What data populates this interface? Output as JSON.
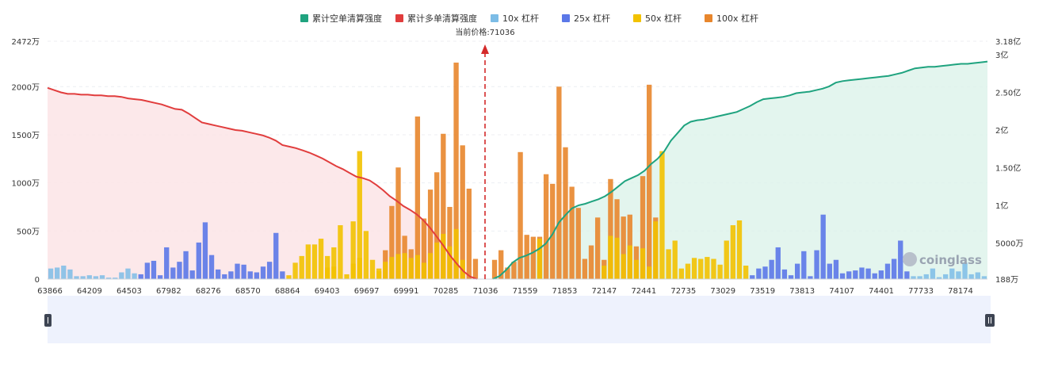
{
  "legend": [
    {
      "label": "累计空单清算强度",
      "color": "#1fa37f",
      "kind": "short"
    },
    {
      "label": "累计多单清算强度",
      "color": "#e13d3d",
      "kind": "long"
    },
    {
      "label": "10x 杠杆",
      "color": "#7cbce6",
      "kind": "10x"
    },
    {
      "label": "25x 杠杆",
      "color": "#5b78e8",
      "kind": "25x"
    },
    {
      "label": "50x 杠杆",
      "color": "#f2c200",
      "kind": "50x"
    },
    {
      "label": "100x 杠杆",
      "color": "#e8862c",
      "kind": "100x"
    }
  ],
  "current_price_label": "当前价格:71036",
  "watermark": "coinglass",
  "chart_data": {
    "type": "bar",
    "current_price": 71036,
    "x_tick_labels": [
      "63866",
      "64209",
      "64503",
      "67982",
      "68276",
      "68570",
      "68864",
      "69403",
      "69697",
      "69991",
      "70285",
      "71036",
      "71559",
      "71853",
      "72147",
      "72441",
      "72735",
      "73029",
      "73519",
      "73813",
      "74107",
      "74401",
      "77733",
      "78174"
    ],
    "left_axis": {
      "ticks": [
        "0",
        "500万",
        "1000万",
        "1500万",
        "2000万",
        "2472万"
      ],
      "ylim": [
        0,
        2472
      ],
      "unit": "万"
    },
    "right_axis": {
      "ticks": [
        "188万",
        "5000万",
        "1亿",
        "1.50亿",
        "2亿",
        "2.50亿",
        "3亿",
        "3.18亿"
      ],
      "ylim": [
        0.0188,
        3.18
      ],
      "unit": "亿"
    },
    "bar_series": [
      {
        "name": "10x 杠杆",
        "color": "#7cbce6"
      },
      {
        "name": "25x 杠杆",
        "color": "#5b78e8"
      },
      {
        "name": "50x 杠杆",
        "color": "#f2c200"
      },
      {
        "name": "100x 杠杆",
        "color": "#e8862c"
      }
    ],
    "bars_left": [
      {
        "v": 110,
        "s": "10x"
      },
      {
        "v": 120,
        "s": "10x"
      },
      {
        "v": 140,
        "s": "10x"
      },
      {
        "v": 100,
        "s": "10x"
      },
      {
        "v": 30,
        "s": "10x"
      },
      {
        "v": 30,
        "s": "10x"
      },
      {
        "v": 40,
        "s": "10x"
      },
      {
        "v": 30,
        "s": "10x"
      },
      {
        "v": 40,
        "s": "10x"
      },
      {
        "v": 15,
        "s": "10x"
      },
      {
        "v": 15,
        "s": "10x"
      },
      {
        "v": 70,
        "s": "10x"
      },
      {
        "v": 110,
        "s": "10x"
      },
      {
        "v": 60,
        "s": "10x"
      },
      {
        "v": 50,
        "s": "25x"
      },
      {
        "v": 170,
        "s": "25x"
      },
      {
        "v": 190,
        "s": "25x"
      },
      {
        "v": 40,
        "s": "25x"
      },
      {
        "v": 330,
        "s": "25x"
      },
      {
        "v": 120,
        "s": "25x"
      },
      {
        "v": 180,
        "s": "25x"
      },
      {
        "v": 290,
        "s": "25x"
      },
      {
        "v": 90,
        "s": "25x"
      },
      {
        "v": 380,
        "s": "25x"
      },
      {
        "v": 590,
        "s": "25x"
      },
      {
        "v": 250,
        "s": "25x"
      },
      {
        "v": 100,
        "s": "25x"
      },
      {
        "v": 50,
        "s": "25x"
      },
      {
        "v": 80,
        "s": "25x"
      },
      {
        "v": 160,
        "s": "25x"
      },
      {
        "v": 150,
        "s": "25x"
      },
      {
        "v": 80,
        "s": "25x"
      },
      {
        "v": 70,
        "s": "25x"
      },
      {
        "v": 130,
        "s": "25x"
      },
      {
        "v": 180,
        "s": "25x"
      },
      {
        "v": 480,
        "s": "25x"
      },
      {
        "v": 80,
        "s": "25x"
      },
      {
        "v": 40,
        "s": "50x"
      },
      {
        "v": 170,
        "s": "50x"
      },
      {
        "v": 240,
        "s": "50x"
      },
      {
        "v": 360,
        "s": "50x"
      },
      {
        "v": 360,
        "s": "50x"
      },
      {
        "v": 420,
        "s": "50x"
      },
      {
        "v": 240,
        "s": "50x"
      },
      {
        "v": 330,
        "s": "50x"
      },
      {
        "v": 560,
        "s": "50x"
      },
      {
        "v": 50,
        "s": "50x"
      },
      {
        "v": 600,
        "s": "50x"
      },
      {
        "v": 1330,
        "s": "50x"
      },
      {
        "v": 500,
        "s": "50x"
      },
      {
        "v": 200,
        "s": "50x"
      },
      {
        "v": 110,
        "s": "50x"
      },
      {
        "v": 300,
        "s": "100x"
      },
      {
        "v": 760,
        "s": "100x"
      },
      {
        "v": 1160,
        "s": "100x"
      },
      {
        "v": 450,
        "s": "100x"
      },
      {
        "v": 310,
        "s": "100x"
      },
      {
        "v": 1690,
        "s": "100x"
      },
      {
        "v": 630,
        "s": "100x"
      },
      {
        "v": 930,
        "s": "100x"
      },
      {
        "v": 1110,
        "s": "100x"
      },
      {
        "v": 1510,
        "s": "100x"
      },
      {
        "v": 750,
        "s": "100x"
      },
      {
        "v": 2250,
        "s": "100x"
      },
      {
        "v": 1390,
        "s": "100x"
      },
      {
        "v": 940,
        "s": "100x"
      },
      {
        "v": 210,
        "s": "100x"
      }
    ],
    "bars_right": [
      {
        "v": 200,
        "s": "100x"
      },
      {
        "v": 300,
        "s": "100x"
      },
      {
        "v": 120,
        "s": "100x"
      },
      {
        "v": 180,
        "s": "100x"
      },
      {
        "v": 1320,
        "s": "100x"
      },
      {
        "v": 460,
        "s": "100x"
      },
      {
        "v": 440,
        "s": "100x"
      },
      {
        "v": 440,
        "s": "100x"
      },
      {
        "v": 1090,
        "s": "100x"
      },
      {
        "v": 990,
        "s": "100x"
      },
      {
        "v": 2000,
        "s": "100x"
      },
      {
        "v": 1370,
        "s": "100x"
      },
      {
        "v": 960,
        "s": "100x"
      },
      {
        "v": 740,
        "s": "100x"
      },
      {
        "v": 210,
        "s": "100x"
      },
      {
        "v": 350,
        "s": "100x"
      },
      {
        "v": 640,
        "s": "100x"
      },
      {
        "v": 200,
        "s": "100x"
      },
      {
        "v": 1040,
        "s": "100x"
      },
      {
        "v": 830,
        "s": "100x"
      },
      {
        "v": 650,
        "s": "100x"
      },
      {
        "v": 670,
        "s": "100x"
      },
      {
        "v": 340,
        "s": "100x"
      },
      {
        "v": 1070,
        "s": "100x"
      },
      {
        "v": 2020,
        "s": "100x"
      },
      {
        "v": 640,
        "s": "100x"
      },
      {
        "v": 1330,
        "s": "50x"
      },
      {
        "v": 310,
        "s": "50x"
      },
      {
        "v": 400,
        "s": "50x"
      },
      {
        "v": 110,
        "s": "50x"
      },
      {
        "v": 160,
        "s": "50x"
      },
      {
        "v": 220,
        "s": "50x"
      },
      {
        "v": 210,
        "s": "50x"
      },
      {
        "v": 230,
        "s": "50x"
      },
      {
        "v": 210,
        "s": "50x"
      },
      {
        "v": 150,
        "s": "50x"
      },
      {
        "v": 400,
        "s": "50x"
      },
      {
        "v": 560,
        "s": "50x"
      },
      {
        "v": 610,
        "s": "50x"
      },
      {
        "v": 140,
        "s": "50x"
      },
      {
        "v": 40,
        "s": "25x"
      },
      {
        "v": 110,
        "s": "25x"
      },
      {
        "v": 130,
        "s": "25x"
      },
      {
        "v": 200,
        "s": "25x"
      },
      {
        "v": 330,
        "s": "25x"
      },
      {
        "v": 100,
        "s": "25x"
      },
      {
        "v": 40,
        "s": "25x"
      },
      {
        "v": 160,
        "s": "25x"
      },
      {
        "v": 290,
        "s": "25x"
      },
      {
        "v": 30,
        "s": "25x"
      },
      {
        "v": 300,
        "s": "25x"
      },
      {
        "v": 670,
        "s": "25x"
      },
      {
        "v": 160,
        "s": "25x"
      },
      {
        "v": 200,
        "s": "25x"
      },
      {
        "v": 60,
        "s": "25x"
      },
      {
        "v": 80,
        "s": "25x"
      },
      {
        "v": 90,
        "s": "25x"
      },
      {
        "v": 120,
        "s": "25x"
      },
      {
        "v": 110,
        "s": "25x"
      },
      {
        "v": 60,
        "s": "25x"
      },
      {
        "v": 90,
        "s": "25x"
      },
      {
        "v": 160,
        "s": "25x"
      },
      {
        "v": 210,
        "s": "25x"
      },
      {
        "v": 400,
        "s": "25x"
      },
      {
        "v": 80,
        "s": "25x"
      },
      {
        "v": 30,
        "s": "10x"
      },
      {
        "v": 30,
        "s": "10x"
      },
      {
        "v": 50,
        "s": "10x"
      },
      {
        "v": 110,
        "s": "10x"
      },
      {
        "v": 20,
        "s": "10x"
      },
      {
        "v": 50,
        "s": "10x"
      },
      {
        "v": 110,
        "s": "10x"
      },
      {
        "v": 80,
        "s": "10x"
      },
      {
        "v": 170,
        "s": "10x"
      },
      {
        "v": 50,
        "s": "10x"
      },
      {
        "v": 70,
        "s": "10x"
      },
      {
        "v": 30,
        "s": "10x"
      }
    ],
    "overlay_left": [
      {
        "i": 43,
        "v": 120
      },
      {
        "i": 44,
        "v": 130
      },
      {
        "i": 47,
        "v": 160
      },
      {
        "i": 48,
        "v": 220
      },
      {
        "i": 51,
        "v": 80
      },
      {
        "i": 52,
        "v": 180
      },
      {
        "i": 53,
        "v": 230
      },
      {
        "i": 54,
        "v": 260
      },
      {
        "i": 55,
        "v": 270
      },
      {
        "i": 56,
        "v": 220
      },
      {
        "i": 57,
        "v": 250
      },
      {
        "i": 58,
        "v": 170
      },
      {
        "i": 59,
        "v": 270
      },
      {
        "i": 60,
        "v": 380
      },
      {
        "i": 61,
        "v": 470
      },
      {
        "i": 62,
        "v": 340
      },
      {
        "i": 63,
        "v": 520
      },
      {
        "i": 64,
        "v": 200
      }
    ],
    "overlay_right": [
      {
        "i": 7,
        "v": 420
      },
      {
        "i": 17,
        "v": 140
      },
      {
        "i": 18,
        "v": 450
      },
      {
        "i": 19,
        "v": 430
      },
      {
        "i": 20,
        "v": 260
      },
      {
        "i": 21,
        "v": 350
      },
      {
        "i": 22,
        "v": 200
      },
      {
        "i": 23,
        "v": 320
      },
      {
        "i": 24,
        "v": 130
      },
      {
        "i": 25,
        "v": 600
      }
    ],
    "long_curve": {
      "name": "累计多单清算强度",
      "values_yi": [
        2.56,
        2.53,
        2.5,
        2.48,
        2.48,
        2.47,
        2.47,
        2.46,
        2.46,
        2.45,
        2.45,
        2.44,
        2.42,
        2.41,
        2.4,
        2.38,
        2.36,
        2.34,
        2.31,
        2.28,
        2.27,
        2.22,
        2.16,
        2.1,
        2.08,
        2.06,
        2.04,
        2.02,
        2.0,
        1.99,
        1.97,
        1.95,
        1.93,
        1.9,
        1.86,
        1.8,
        1.78,
        1.76,
        1.73,
        1.7,
        1.66,
        1.62,
        1.57,
        1.52,
        1.48,
        1.43,
        1.38,
        1.36,
        1.33,
        1.27,
        1.2,
        1.12,
        1.06,
        0.99,
        0.94,
        0.88,
        0.8,
        0.7,
        0.58,
        0.46,
        0.33,
        0.22,
        0.12,
        0.05,
        0.02
      ]
    },
    "short_curve": {
      "name": "累计空单清算强度",
      "values_yi": [
        0.02,
        0.06,
        0.14,
        0.24,
        0.3,
        0.33,
        0.37,
        0.42,
        0.49,
        0.61,
        0.77,
        0.87,
        0.96,
        1.0,
        1.02,
        1.05,
        1.08,
        1.12,
        1.18,
        1.25,
        1.32,
        1.36,
        1.4,
        1.46,
        1.55,
        1.62,
        1.72,
        1.86,
        1.96,
        2.06,
        2.11,
        2.13,
        2.14,
        2.16,
        2.18,
        2.2,
        2.22,
        2.24,
        2.28,
        2.32,
        2.37,
        2.41,
        2.42,
        2.43,
        2.44,
        2.46,
        2.49,
        2.5,
        2.51,
        2.53,
        2.55,
        2.58,
        2.63,
        2.65,
        2.66,
        2.67,
        2.68,
        2.69,
        2.7,
        2.71,
        2.72,
        2.74,
        2.76,
        2.79,
        2.82,
        2.83,
        2.84,
        2.84,
        2.85,
        2.86,
        2.87,
        2.88,
        2.88,
        2.89,
        2.9,
        2.91
      ]
    }
  }
}
